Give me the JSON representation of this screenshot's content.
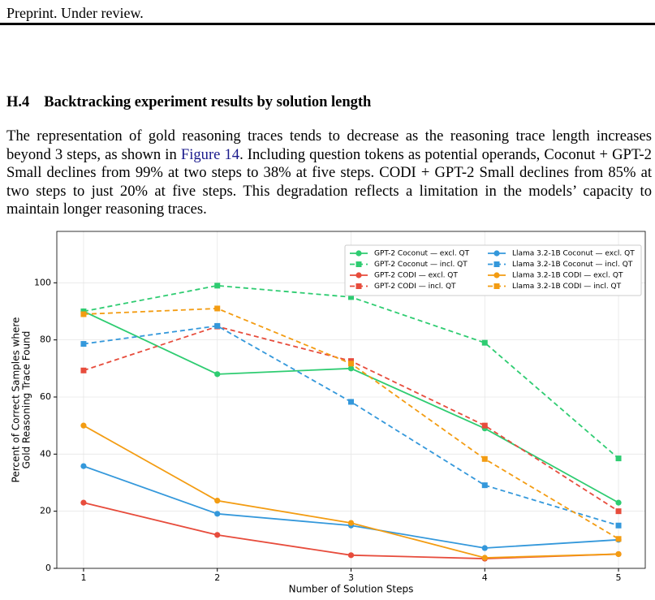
{
  "header": "Preprint. Under review.",
  "section": {
    "number": "H.4",
    "title": "Backtracking experiment results by solution length"
  },
  "paragraph": [
    "The representation of gold reasoning traces tends to decrease as the reasoning trace length increases beyond 3 steps, as shown in ",
    "Figure 14",
    ". Including question tokens as potential operands, Coconut + GPT-2 Small declines from 99% at two steps to 38% at five steps. CODI + GPT-2 Small declines from 85% at two steps to just 20% at five steps. This degradation reflects a limitation in the models’ capacity to maintain longer reasoning traces."
  ],
  "chart_data": {
    "type": "line",
    "xlabel": "Number of Solution Steps",
    "ylabel": [
      "Percent of Correct Samples where",
      "Gold Reasoning Trace Found"
    ],
    "x": [
      1,
      2,
      3,
      4,
      5
    ],
    "xlim": [
      0.8,
      5.2
    ],
    "xticks": [
      1,
      2,
      3,
      4,
      5
    ],
    "ylim": [
      0,
      118
    ],
    "yticks": [
      0,
      20,
      40,
      60,
      80,
      100
    ],
    "grid": true,
    "legend": "upper right",
    "series": [
      {
        "name": "GPT-2 Coconut — excl. QT",
        "color": "#2ecc71",
        "dash": false,
        "marker": "circle",
        "values": [
          90,
          68,
          70,
          49,
          23
        ]
      },
      {
        "name": "GPT-2 Coconut — incl. QT",
        "color": "#2ecc71",
        "dash": true,
        "marker": "square",
        "values": [
          90,
          99,
          95,
          79,
          38.5
        ]
      },
      {
        "name": "GPT-2 CODI — excl. QT",
        "color": "#e74c3c",
        "dash": false,
        "marker": "circle",
        "values": [
          23,
          11.7,
          4.6,
          3.4,
          5
        ]
      },
      {
        "name": "GPT-2 CODI — incl. QT",
        "color": "#e74c3c",
        "dash": true,
        "marker": "square",
        "values": [
          69.3,
          84.7,
          72.6,
          50,
          20
        ]
      },
      {
        "name": "Llama 3.2-1B Coconut — excl. QT",
        "color": "#3498db",
        "dash": false,
        "marker": "circle",
        "values": [
          35.8,
          19.1,
          15,
          7.1,
          10
        ]
      },
      {
        "name": "Llama 3.2-1B Coconut — incl. QT",
        "color": "#3498db",
        "dash": true,
        "marker": "square",
        "values": [
          78.6,
          84.9,
          58.3,
          29.1,
          15
        ]
      },
      {
        "name": "Llama 3.2-1B CODI — excl. QT",
        "color": "#f39c12",
        "dash": false,
        "marker": "circle",
        "values": [
          50,
          23.7,
          15.9,
          3.7,
          5
        ]
      },
      {
        "name": "Llama 3.2-1B CODI — incl. QT",
        "color": "#f39c12",
        "dash": true,
        "marker": "square",
        "values": [
          89,
          91,
          71.7,
          38.3,
          10.3
        ]
      }
    ]
  }
}
